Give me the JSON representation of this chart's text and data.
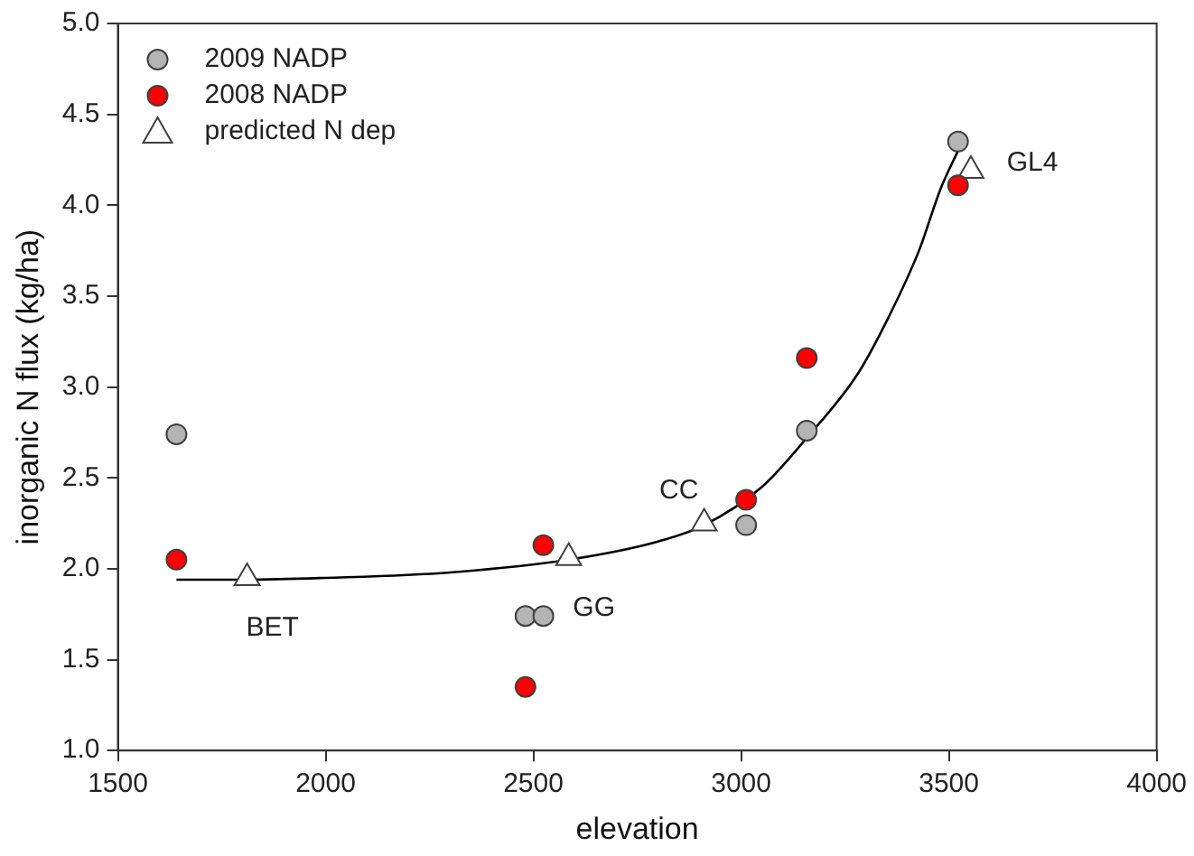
{
  "chart_data": {
    "type": "scatter",
    "xlabel": "elevation",
    "ylabel": "inorganic N flux (kg/ha)",
    "xlim": [
      1500,
      4000
    ],
    "xticks": [
      1500,
      2000,
      2500,
      3000,
      3500,
      4000
    ],
    "ylim": [
      1.0,
      5.0
    ],
    "yticks": [
      {
        "value": 1.0,
        "label": "1.0"
      },
      {
        "value": 1.5,
        "label": "1.5"
      },
      {
        "value": 2.0,
        "label": "2.0"
      },
      {
        "value": 2.5,
        "label": "2.5"
      },
      {
        "value": 3.0,
        "label": "3.0"
      },
      {
        "value": 3.5,
        "label": "3.5"
      },
      {
        "value": 4.0,
        "label": "4.0"
      },
      {
        "value": 4.5,
        "label": "4.5"
      },
      {
        "value": 5.0,
        "label": "5.0"
      }
    ],
    "grid": false,
    "legend": "top left",
    "series": [
      {
        "type": "line",
        "marker": "none",
        "color": "#000000",
        "x": [
          1641,
          1811,
          2000,
          2300,
          2585,
          2800,
          2911,
          3050,
          3158,
          3280,
          3354,
          3428,
          3480,
          3522
        ],
        "values": [
          1.94,
          1.94,
          1.95,
          1.98,
          2.05,
          2.15,
          2.24,
          2.45,
          2.72,
          3.07,
          3.38,
          3.75,
          4.09,
          4.3
        ]
      },
      {
        "name": "2009 NADP",
        "marker": "circle",
        "color": "#b4b4b4",
        "x": [
          1641,
          2481,
          2524,
          3012,
          3158,
          3522
        ],
        "values": [
          2.74,
          1.74,
          1.74,
          2.24,
          2.76,
          4.35
        ]
      },
      {
        "name": "2008 NADP",
        "marker": "circle",
        "color": "#ff0000",
        "x": [
          1641,
          2481,
          2524,
          3012,
          3158,
          3522
        ],
        "values": [
          2.05,
          1.35,
          2.13,
          2.38,
          3.16,
          4.11
        ]
      },
      {
        "name": "predicted N dep",
        "marker": "triangle",
        "color": "#ffffff",
        "x": [
          1811,
          2585,
          2911,
          3553
        ],
        "values": [
          1.95,
          2.06,
          2.25,
          4.19
        ]
      }
    ],
    "annotations": [
      {
        "text": "BET",
        "x": 1811,
        "y": 1.95
      },
      {
        "text": "GG",
        "x": 2585,
        "y": 2.06
      },
      {
        "text": "CC",
        "x": 2911,
        "y": 2.25
      },
      {
        "text": "GL4",
        "x": 3553,
        "y": 4.19
      }
    ]
  }
}
